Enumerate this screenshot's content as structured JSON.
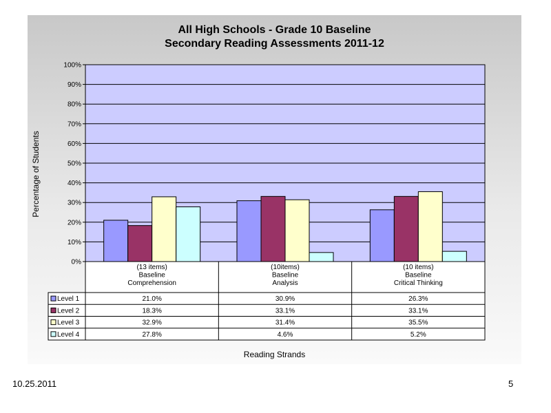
{
  "chart_data": {
    "type": "bar",
    "title": "All High Schools - Grade 10 Baseline",
    "subtitle": "Secondary Reading Assessments 2011-12",
    "xlabel": "Reading Strands",
    "ylabel": "Percentage of Students",
    "ylim": [
      0,
      100
    ],
    "yticks": [
      "0%",
      "10%",
      "20%",
      "30%",
      "40%",
      "50%",
      "60%",
      "70%",
      "80%",
      "90%",
      "100%"
    ],
    "grid": true,
    "categories": [
      [
        "(13 items)",
        "Baseline",
        "Comprehension"
      ],
      [
        "(10items)",
        "Baseline",
        "Analysis"
      ],
      [
        "(10 items)",
        "Baseline",
        "Critical Thinking"
      ]
    ],
    "series": [
      {
        "name": "Level 1",
        "color": "#9999ff",
        "values": [
          21.0,
          30.9,
          26.3
        ],
        "labels": [
          "21.0%",
          "30.9%",
          "26.3%"
        ]
      },
      {
        "name": "Level 2",
        "color": "#993366",
        "values": [
          18.3,
          33.1,
          33.1
        ],
        "labels": [
          "18.3%",
          "33.1%",
          "33.1%"
        ]
      },
      {
        "name": "Level 3",
        "color": "#ffffcc",
        "values": [
          32.9,
          31.4,
          35.5
        ],
        "labels": [
          "32.9%",
          "31.4%",
          "35.5%"
        ]
      },
      {
        "name": "Level 4",
        "color": "#ccffff",
        "values": [
          27.8,
          4.6,
          5.2
        ],
        "labels": [
          "27.8%",
          "4.6%",
          "5.2%"
        ]
      }
    ],
    "plot_background": "#ccccff"
  },
  "footer": {
    "date": "10.25.2011",
    "page": "5"
  }
}
